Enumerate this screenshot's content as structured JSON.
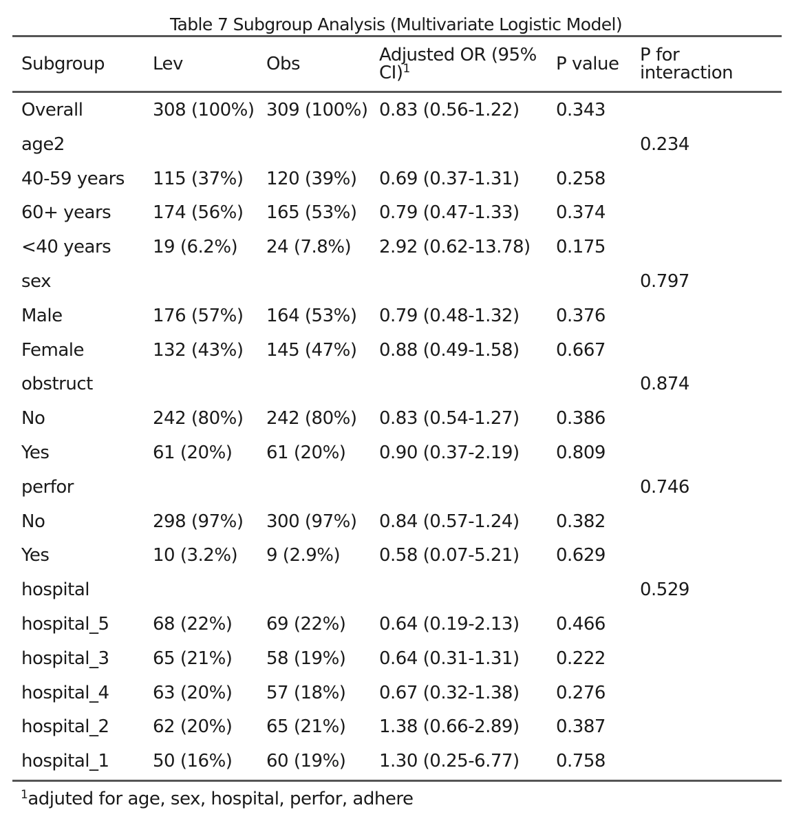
{
  "caption": "Table 7 Subgroup Analysis (Multivariate Logistic Model)",
  "headers": {
    "subgroup": "Subgroup",
    "lev": "Lev",
    "obs": "Obs",
    "or_line1": "Adjusted OR (95%",
    "or_line2": "CI)",
    "or_sup": "1",
    "pvalue": "P value",
    "pint_line1": "P for",
    "pint_line2": "interaction"
  },
  "rows": [
    [
      "Overall",
      "308 (100%)",
      "309 (100%)",
      "0.83 (0.56-1.22)",
      "0.343",
      ""
    ],
    [
      "age2",
      "",
      "",
      "",
      "",
      "0.234"
    ],
    [
      "40-59 years",
      "115 (37%)",
      "120 (39%)",
      "0.69 (0.37-1.31)",
      "0.258",
      ""
    ],
    [
      "60+ years",
      "174 (56%)",
      "165 (53%)",
      "0.79 (0.47-1.33)",
      "0.374",
      ""
    ],
    [
      "<40 years",
      "19 (6.2%)",
      "24 (7.8%)",
      "2.92 (0.62-13.78)",
      "0.175",
      ""
    ],
    [
      "sex",
      "",
      "",
      "",
      "",
      "0.797"
    ],
    [
      "Male",
      "176 (57%)",
      "164 (53%)",
      "0.79 (0.48-1.32)",
      "0.376",
      ""
    ],
    [
      "Female",
      "132 (43%)",
      "145 (47%)",
      "0.88 (0.49-1.58)",
      "0.667",
      ""
    ],
    [
      "obstruct",
      "",
      "",
      "",
      "",
      "0.874"
    ],
    [
      "No",
      "242 (80%)",
      "242 (80%)",
      "0.83 (0.54-1.27)",
      "0.386",
      ""
    ],
    [
      "Yes",
      "61 (20%)",
      "61 (20%)",
      "0.90 (0.37-2.19)",
      "0.809",
      ""
    ],
    [
      "perfor",
      "",
      "",
      "",
      "",
      "0.746"
    ],
    [
      "No",
      "298 (97%)",
      "300 (97%)",
      "0.84 (0.57-1.24)",
      "0.382",
      ""
    ],
    [
      "Yes",
      "10 (3.2%)",
      "9 (2.9%)",
      "0.58 (0.07-5.21)",
      "0.629",
      ""
    ],
    [
      "hospital",
      "",
      "",
      "",
      "",
      "0.529"
    ],
    [
      "hospital_5",
      "68 (22%)",
      "69 (22%)",
      "0.64 (0.19-2.13)",
      "0.466",
      ""
    ],
    [
      "hospital_3",
      "65 (21%)",
      "58 (19%)",
      "0.64 (0.31-1.31)",
      "0.222",
      ""
    ],
    [
      "hospital_4",
      "63 (20%)",
      "57 (18%)",
      "0.67 (0.32-1.38)",
      "0.276",
      ""
    ],
    [
      "hospital_2",
      "62 (20%)",
      "65 (21%)",
      "1.38 (0.66-2.89)",
      "0.387",
      ""
    ],
    [
      "hospital_1",
      "50 (16%)",
      "60 (19%)",
      "1.30 (0.25-6.77)",
      "0.758",
      ""
    ]
  ],
  "footnote": {
    "marker": "1",
    "text": "adjuted for age, sex, hospital, perfor, adhere"
  }
}
